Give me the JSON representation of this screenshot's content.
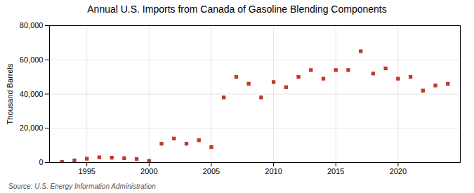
{
  "chart_data": {
    "type": "scatter",
    "title": "Annual U.S. Imports from Canada of Gasoline Blending Components",
    "ylabel": "Thousand Barrels",
    "source": "Source: U.S. Energy Information Administration",
    "x": [
      1993,
      1994,
      1995,
      1996,
      1997,
      1998,
      1999,
      2000,
      2001,
      2002,
      2003,
      2004,
      2005,
      2006,
      2007,
      2008,
      2009,
      2010,
      2011,
      2012,
      2013,
      2014,
      2015,
      2016,
      2017,
      2018,
      2019,
      2020,
      2021,
      2022,
      2023,
      2024
    ],
    "values": [
      400,
      1200,
      2200,
      3000,
      2800,
      2500,
      2000,
      900,
      11000,
      14000,
      11000,
      13000,
      9000,
      38000,
      50000,
      46000,
      38000,
      47000,
      44000,
      50000,
      54000,
      49000,
      54000,
      54000,
      65000,
      52000,
      55000,
      49000,
      50000,
      42000,
      45000,
      46000
    ],
    "color": "#c0392b",
    "marker": "square",
    "xlim": [
      1992,
      2025
    ],
    "xticks": [
      1995,
      2000,
      2005,
      2010,
      2015,
      2020
    ],
    "ylim": [
      0,
      80000
    ],
    "yticks": [
      0,
      {
        "value": 20000,
        "label": "20,000"
      },
      {
        "value": 40000,
        "label": "40,000"
      },
      {
        "value": 60000,
        "label": "60,000"
      },
      {
        "value": 80000,
        "label": "80,000"
      }
    ],
    "grid": true
  }
}
